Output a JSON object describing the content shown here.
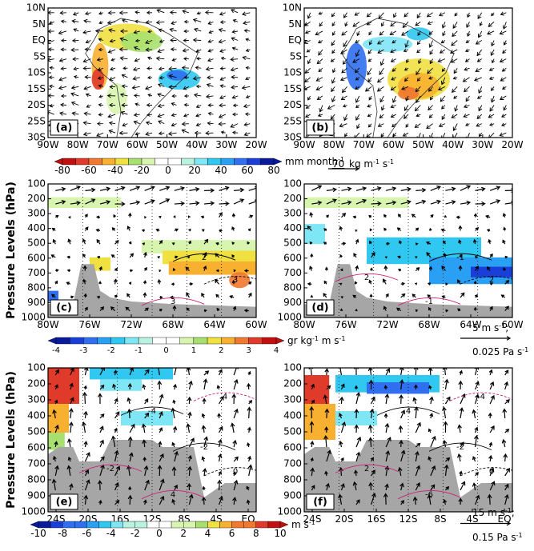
{
  "panels": [
    {
      "label": "(a)",
      "xticks": [
        "90W",
        "80W",
        "70W",
        "60W",
        "50W",
        "40W",
        "30W",
        "20W"
      ],
      "yticks": [
        "10N",
        "5N",
        "EQ",
        "5S",
        "10S",
        "15S",
        "20S",
        "25S",
        "30S"
      ]
    },
    {
      "label": "(b)",
      "xticks": [
        "90W",
        "80W",
        "70W",
        "60W",
        "50W",
        "40W",
        "30W",
        "20W"
      ],
      "yticks": [
        "10N",
        "5N",
        "EQ",
        "5S",
        "10S",
        "15S",
        "20S",
        "25S",
        "30S"
      ]
    },
    {
      "label": "(c)",
      "xticks": [
        "80W",
        "76W",
        "72W",
        "68W",
        "64W",
        "60W"
      ],
      "yticks": [
        "100",
        "200",
        "300",
        "400",
        "500",
        "600",
        "700",
        "800",
        "900",
        "1000"
      ],
      "contour_labels": [
        "2",
        "3",
        "3"
      ]
    },
    {
      "label": "(d)",
      "xticks": [
        "80W",
        "76W",
        "72W",
        "68W",
        "64W",
        "60W"
      ],
      "yticks": [
        "100",
        "200",
        "300",
        "400",
        "500",
        "600",
        "700",
        "800",
        "900",
        "1000"
      ],
      "contour_labels": [
        "-1",
        "-1",
        "2",
        "2"
      ]
    },
    {
      "label": "(e)",
      "xticks": [
        "24S",
        "20S",
        "16S",
        "12S",
        "8S",
        "4S",
        "EQ"
      ],
      "yticks": [
        "100",
        "200",
        "300",
        "400",
        "500",
        "600",
        "700",
        "800",
        "900",
        "1000"
      ],
      "contour_labels": [
        "-2",
        "4",
        "0",
        "-2",
        "-4",
        "4"
      ]
    },
    {
      "label": "(f)",
      "xticks": [
        "24S",
        "20S",
        "16S",
        "12S",
        "8S",
        "4S",
        "EQ"
      ],
      "yticks": [
        "100",
        "200",
        "300",
        "400",
        "500",
        "600",
        "700",
        "800",
        "900",
        "1000"
      ],
      "contour_labels": [
        "-2",
        "-6",
        "0",
        "2",
        "4",
        "-4"
      ]
    }
  ],
  "y_axis_label": "Pressure Levels (hPa)",
  "colorbars": [
    {
      "ticks": [
        "-80",
        "-60",
        "-40",
        "-20",
        "0",
        "20",
        "40",
        "60",
        "80"
      ],
      "unit": [
        "mm month",
        "-1"
      ]
    },
    {
      "ticks": [
        "-4",
        "-3",
        "-2",
        "-1",
        "0",
        "1",
        "2",
        "3",
        "4"
      ],
      "unit": [
        "gr kg",
        "-1",
        "  m s",
        "-1"
      ]
    },
    {
      "ticks": [
        "-10",
        "-8",
        "-6",
        "-4",
        "-2",
        "0",
        "2",
        "4",
        "6",
        "8",
        "10"
      ],
      "unit": [
        "m s",
        "-1"
      ]
    }
  ],
  "vector_legends": [
    {
      "value": "70",
      "unit": [
        "kg m",
        "-1",
        "  s",
        "-1"
      ]
    },
    {
      "lines": [
        [
          "5 m s",
          "-1",
          ";"
        ],
        [
          "0.025 Pa s",
          "-1"
        ]
      ]
    },
    {
      "lines": [
        [
          "15 m s",
          "-1",
          ";"
        ],
        [
          "0.15 Pa s",
          "-1"
        ]
      ]
    }
  ]
}
